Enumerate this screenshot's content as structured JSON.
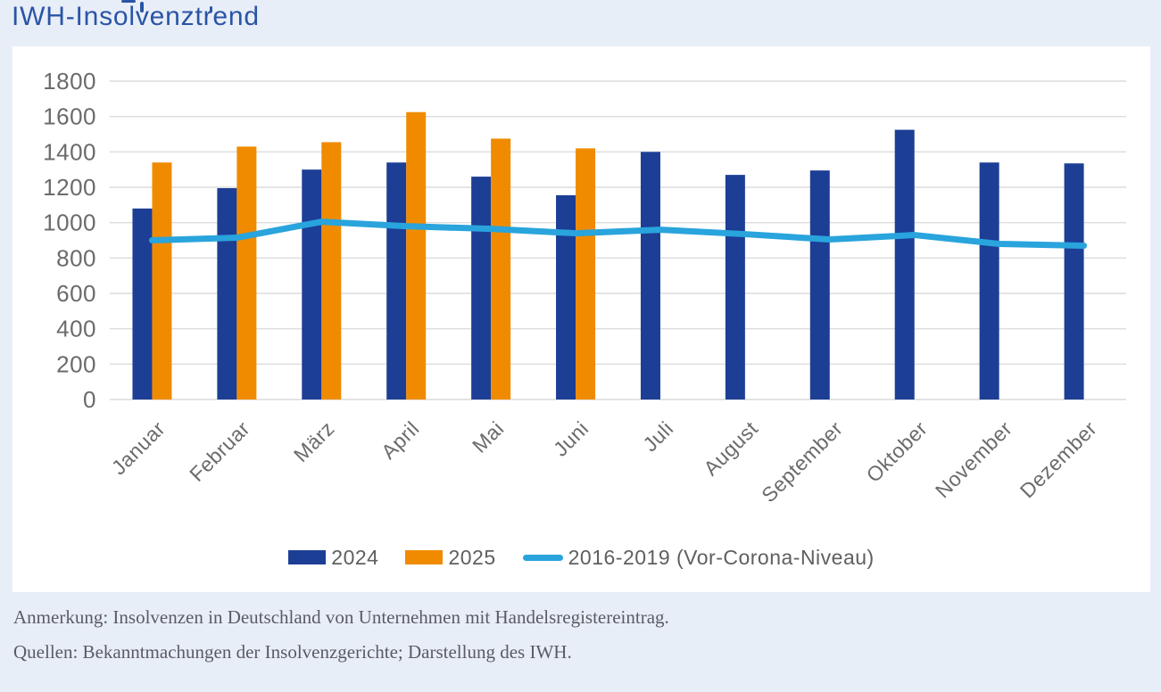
{
  "page": {
    "title": "IWH-Insolvenztrend",
    "note": "Anmerkung: Insolvenzen in Deutschland von Unternehmen mit Handelsregistereintrag.",
    "sources": "Quellen: Bekanntmachungen der Insolvenzgerichte; Darstellung des IWH."
  },
  "colors": {
    "page_bg": "#e8eef8",
    "panel_bg": "#ffffff",
    "title_text": "#2a55a5",
    "grid_line": "#dcdcdc",
    "axis_text": "#6b6b6b",
    "legend_text": "#5f5f5f",
    "footer_text": "#5b5b63",
    "bar_2024": "#1c3e95",
    "bar_2025": "#f08b00",
    "line_2016_2019": "#29a4dc"
  },
  "chart_data": {
    "type": "bar",
    "title": "IWH-Insolvenztrend",
    "categories": [
      "Januar",
      "Februar",
      "März",
      "April",
      "Mai",
      "Juni",
      "Juli",
      "August",
      "September",
      "Oktober",
      "November",
      "Dezember"
    ],
    "series": [
      {
        "name": "2024",
        "type": "bar",
        "color": "#1c3e95",
        "values": [
          1080,
          1195,
          1300,
          1340,
          1260,
          1155,
          1400,
          1270,
          1295,
          1525,
          1340,
          1335
        ]
      },
      {
        "name": "2025",
        "type": "bar",
        "color": "#f08b00",
        "values": [
          1340,
          1430,
          1455,
          1625,
          1475,
          1420
        ]
      },
      {
        "name": "2016-2019 (Vor-Corona-Niveau)",
        "type": "line",
        "color": "#29a4dc",
        "values": [
          900,
          915,
          1005,
          980,
          965,
          940,
          960,
          935,
          905,
          930,
          880,
          870
        ]
      }
    ],
    "xlabel": "",
    "ylabel": "",
    "ylim": [
      0,
      1800
    ],
    "ytick_step": 200,
    "grid": true,
    "legend_position": "bottom"
  }
}
